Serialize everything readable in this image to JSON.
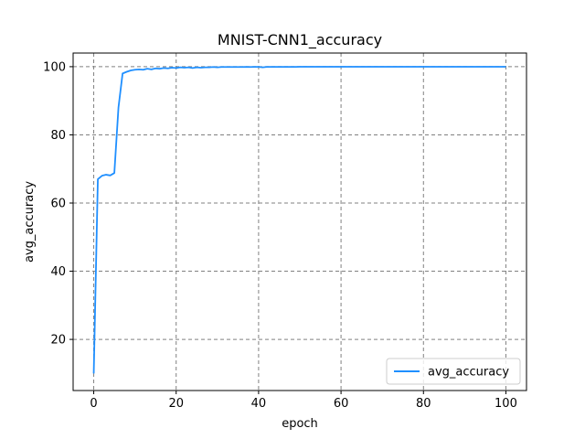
{
  "chart_data": {
    "type": "line",
    "title": "MNIST-CNN1_accuracy",
    "xlabel": "epoch",
    "ylabel": "avg_accuracy",
    "xlim": [
      -5,
      105
    ],
    "ylim": [
      5,
      104
    ],
    "xticks": [
      0,
      20,
      40,
      60,
      80,
      100
    ],
    "yticks": [
      20,
      40,
      60,
      80,
      100
    ],
    "grid": true,
    "legend_position": "lower-right",
    "series": [
      {
        "name": "avg_accuracy",
        "color": "#1f8fff",
        "x": [
          0,
          1,
          2,
          3,
          4,
          5,
          6,
          7,
          8,
          9,
          10,
          11,
          12,
          13,
          14,
          15,
          16,
          17,
          18,
          19,
          20,
          21,
          22,
          23,
          24,
          25,
          26,
          27,
          28,
          29,
          30,
          31,
          32,
          33,
          34,
          35,
          36,
          37,
          38,
          39,
          40,
          41,
          42,
          43,
          44,
          45,
          46,
          47,
          48,
          49,
          50,
          55,
          60,
          65,
          70,
          75,
          80,
          85,
          90,
          95,
          100
        ],
        "y": [
          10,
          67,
          68,
          68.3,
          68.1,
          68.8,
          88,
          98,
          98.5,
          98.9,
          99.1,
          99.2,
          99.1,
          99.4,
          99.2,
          99.5,
          99.4,
          99.6,
          99.5,
          99.7,
          99.6,
          99.8,
          99.7,
          99.8,
          99.6,
          99.8,
          99.7,
          99.8,
          99.8,
          99.9,
          99.8,
          99.9,
          99.9,
          99.9,
          99.9,
          99.9,
          99.9,
          99.95,
          99.9,
          99.95,
          99.95,
          99.8,
          99.95,
          99.95,
          99.95,
          99.95,
          99.95,
          99.95,
          99.95,
          99.95,
          99.98,
          99.98,
          99.98,
          99.98,
          99.98,
          99.98,
          99.98,
          99.98,
          99.98,
          99.98,
          99.98
        ]
      }
    ]
  }
}
